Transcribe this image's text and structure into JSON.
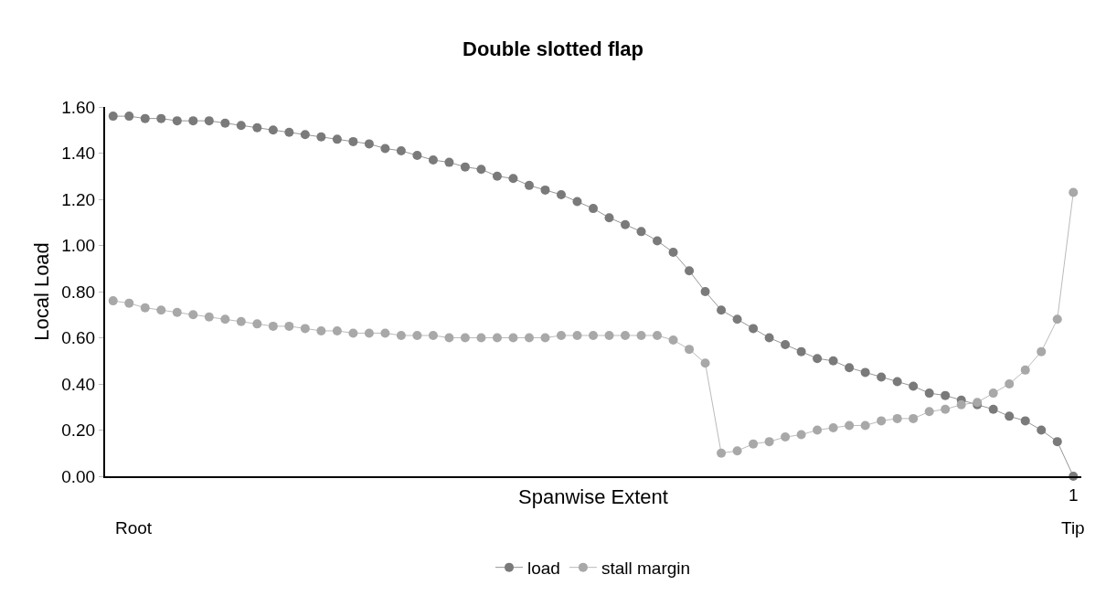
{
  "chart_data": {
    "type": "line",
    "title": "Double slotted flap",
    "xlabel": "Spanwise Extent",
    "ylabel": "Local Load",
    "annotations": [
      "Root",
      "1",
      "Tip"
    ],
    "categories": [
      null,
      null,
      null,
      null,
      null,
      null,
      null,
      null,
      null,
      null,
      null,
      null,
      null,
      null,
      null,
      null,
      null,
      null,
      null,
      null,
      null,
      null,
      null,
      null,
      null,
      null,
      null,
      null,
      null,
      null,
      null,
      null,
      null,
      null,
      null,
      null,
      null,
      null,
      null,
      null,
      null,
      null,
      null,
      null,
      null,
      null,
      null,
      null,
      null,
      null,
      null,
      null,
      null,
      null,
      null,
      null,
      null,
      null,
      null,
      null,
      null
    ],
    "series": [
      {
        "name": "load",
        "color": "#7a7a7a",
        "values": [
          1.56,
          1.56,
          1.55,
          1.55,
          1.54,
          1.54,
          1.54,
          1.53,
          1.52,
          1.51,
          1.5,
          1.49,
          1.48,
          1.47,
          1.46,
          1.45,
          1.44,
          1.42,
          1.41,
          1.39,
          1.37,
          1.36,
          1.34,
          1.33,
          1.3,
          1.29,
          1.26,
          1.24,
          1.22,
          1.19,
          1.16,
          1.12,
          1.09,
          1.06,
          1.02,
          0.97,
          0.89,
          0.8,
          0.72,
          0.68,
          0.64,
          0.6,
          0.57,
          0.54,
          0.51,
          0.5,
          0.47,
          0.45,
          0.43,
          0.41,
          0.39,
          0.36,
          0.35,
          0.33,
          0.31,
          0.29,
          0.26,
          0.24,
          0.2,
          0.15,
          0.0
        ]
      },
      {
        "name": "stall margin",
        "color": "#a8a8a8",
        "values": [
          0.76,
          0.75,
          0.73,
          0.72,
          0.71,
          0.7,
          0.69,
          0.68,
          0.67,
          0.66,
          0.65,
          0.65,
          0.64,
          0.63,
          0.63,
          0.62,
          0.62,
          0.62,
          0.61,
          0.61,
          0.61,
          0.6,
          0.6,
          0.6,
          0.6,
          0.6,
          0.6,
          0.6,
          0.61,
          0.61,
          0.61,
          0.61,
          0.61,
          0.61,
          0.61,
          0.59,
          0.55,
          0.49,
          0.1,
          0.11,
          0.14,
          0.15,
          0.17,
          0.18,
          0.2,
          0.21,
          0.22,
          0.22,
          0.24,
          0.25,
          0.25,
          0.28,
          0.29,
          0.31,
          0.32,
          0.36,
          0.4,
          0.46,
          0.54,
          0.68,
          1.23
        ]
      }
    ],
    "ylim": [
      0,
      1.6
    ],
    "yticks": [
      {
        "value": 0,
        "label": "0.00"
      },
      {
        "value": 0.2,
        "label": "0.20"
      },
      {
        "value": 0.4,
        "label": "0.40"
      },
      {
        "value": 0.6,
        "label": "0.60"
      },
      {
        "value": 0.8,
        "label": "0.80"
      },
      {
        "value": 1.0,
        "label": "1.00"
      },
      {
        "value": 1.2,
        "label": "1.20"
      },
      {
        "value": 1.4,
        "label": "1.40"
      },
      {
        "value": 1.6,
        "label": "1.60"
      }
    ],
    "marker": "circle",
    "legend": "bottom"
  }
}
